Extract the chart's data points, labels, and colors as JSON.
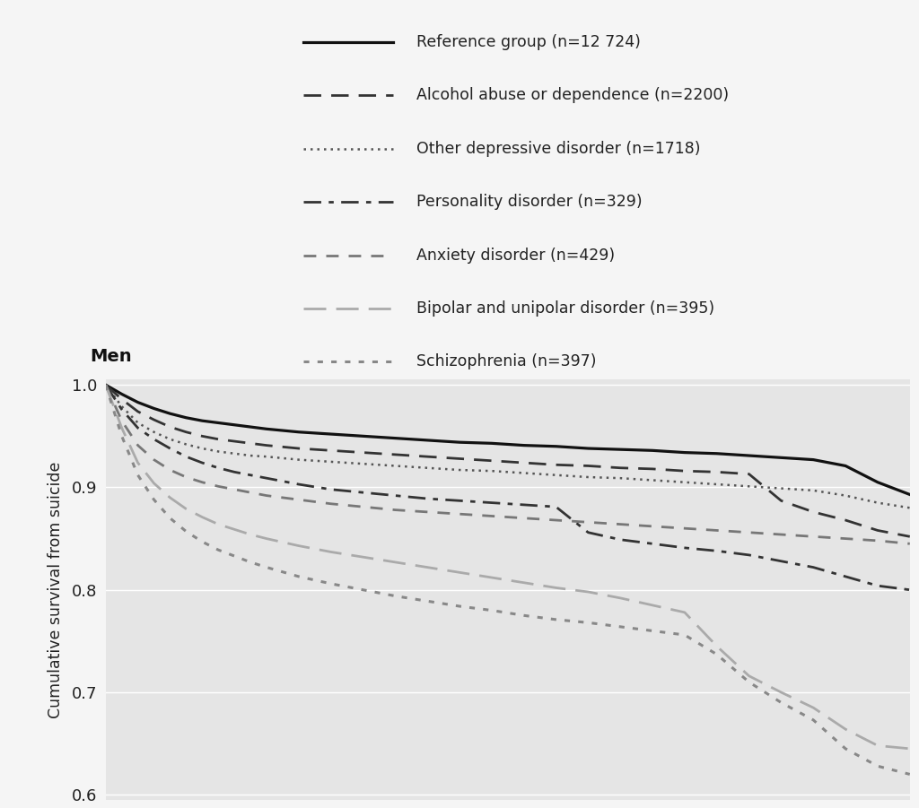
{
  "title": "Men",
  "ylabel": "Cumulative survival from suicide",
  "xlim": [
    0,
    25
  ],
  "ylim": [
    0.595,
    1.005
  ],
  "yticks": [
    0.6,
    0.7,
    0.8,
    0.9,
    1.0
  ],
  "bg_color": "#e5e5e5",
  "fig_bg_color": "#f5f5f5",
  "series": [
    {
      "label": "Reference group (n=12 724)",
      "color": "#111111",
      "linestyle": "solid",
      "linewidth": 2.3,
      "x": [
        0,
        0.5,
        1,
        1.5,
        2,
        2.5,
        3,
        3.5,
        4,
        4.5,
        5,
        6,
        7,
        8,
        9,
        10,
        11,
        12,
        13,
        14,
        15,
        16,
        17,
        18,
        19,
        20,
        21,
        22,
        23,
        24,
        25
      ],
      "y": [
        1.0,
        0.991,
        0.983,
        0.977,
        0.972,
        0.968,
        0.965,
        0.963,
        0.961,
        0.959,
        0.957,
        0.954,
        0.952,
        0.95,
        0.948,
        0.946,
        0.944,
        0.943,
        0.941,
        0.94,
        0.938,
        0.937,
        0.936,
        0.934,
        0.933,
        0.931,
        0.929,
        0.927,
        0.921,
        0.905,
        0.893
      ]
    },
    {
      "label": "Alcohol abuse or dependence (n=2200)",
      "color": "#333333",
      "linestyle": "dashed",
      "dash_pattern": [
        7,
        4
      ],
      "linewidth": 2.0,
      "x": [
        0,
        0.5,
        1,
        1.5,
        2,
        2.5,
        3,
        3.5,
        4,
        4.5,
        5,
        6,
        7,
        8,
        9,
        10,
        11,
        12,
        13,
        14,
        15,
        16,
        17,
        18,
        19,
        20,
        21,
        22,
        23,
        24,
        25
      ],
      "y": [
        1.0,
        0.986,
        0.974,
        0.966,
        0.959,
        0.954,
        0.95,
        0.947,
        0.945,
        0.943,
        0.941,
        0.938,
        0.936,
        0.934,
        0.932,
        0.93,
        0.928,
        0.926,
        0.924,
        0.922,
        0.921,
        0.919,
        0.918,
        0.916,
        0.915,
        0.913,
        0.887,
        0.876,
        0.868,
        0.858,
        0.852
      ]
    },
    {
      "label": "Other depressive disorder (n=1718)",
      "color": "#555555",
      "linestyle": "densely_dotted",
      "dash_pattern": [
        1,
        2
      ],
      "linewidth": 1.8,
      "x": [
        0,
        0.5,
        1,
        1.5,
        2,
        2.5,
        3,
        3.5,
        4,
        4.5,
        5,
        6,
        7,
        8,
        9,
        10,
        11,
        12,
        13,
        14,
        15,
        16,
        17,
        18,
        19,
        20,
        21,
        22,
        23,
        24,
        25
      ],
      "y": [
        1.0,
        0.979,
        0.963,
        0.954,
        0.947,
        0.942,
        0.938,
        0.935,
        0.933,
        0.931,
        0.93,
        0.927,
        0.925,
        0.923,
        0.921,
        0.919,
        0.917,
        0.916,
        0.914,
        0.912,
        0.91,
        0.909,
        0.907,
        0.905,
        0.903,
        0.901,
        0.899,
        0.897,
        0.892,
        0.885,
        0.88
      ]
    },
    {
      "label": "Personality disorder (n=329)",
      "color": "#333333",
      "linestyle": "dashdotted",
      "dash_pattern": [
        7,
        3,
        2,
        3
      ],
      "linewidth": 2.0,
      "x": [
        0,
        0.5,
        1,
        1.5,
        2,
        2.5,
        3,
        3.5,
        4,
        4.5,
        5,
        6,
        7,
        8,
        9,
        10,
        11,
        12,
        13,
        14,
        15,
        16,
        17,
        18,
        19,
        20,
        21,
        22,
        23,
        24,
        25
      ],
      "y": [
        1.0,
        0.976,
        0.958,
        0.947,
        0.938,
        0.93,
        0.924,
        0.919,
        0.915,
        0.912,
        0.909,
        0.903,
        0.898,
        0.895,
        0.892,
        0.889,
        0.887,
        0.885,
        0.883,
        0.881,
        0.856,
        0.849,
        0.845,
        0.841,
        0.838,
        0.834,
        0.828,
        0.822,
        0.813,
        0.804,
        0.8
      ]
    },
    {
      "label": "Anxiety disorder (n=429)",
      "color": "#777777",
      "linestyle": "dashed",
      "dash_pattern": [
        5,
        4
      ],
      "linewidth": 2.0,
      "x": [
        0,
        0.5,
        1,
        1.5,
        2,
        2.5,
        3,
        3.5,
        4,
        4.5,
        5,
        6,
        7,
        8,
        9,
        10,
        11,
        12,
        13,
        14,
        15,
        16,
        17,
        18,
        19,
        20,
        21,
        22,
        23,
        24,
        25
      ],
      "y": [
        1.0,
        0.965,
        0.941,
        0.927,
        0.917,
        0.91,
        0.905,
        0.901,
        0.898,
        0.895,
        0.892,
        0.888,
        0.884,
        0.881,
        0.878,
        0.876,
        0.874,
        0.872,
        0.87,
        0.868,
        0.866,
        0.864,
        0.862,
        0.86,
        0.858,
        0.856,
        0.854,
        0.852,
        0.85,
        0.848,
        0.845
      ]
    },
    {
      "label": "Bipolar and unipolar disorder (n=395)",
      "color": "#aaaaaa",
      "linestyle": "dashed",
      "dash_pattern": [
        9,
        4
      ],
      "linewidth": 2.0,
      "x": [
        0,
        0.5,
        1,
        1.5,
        2,
        2.5,
        3,
        3.5,
        4,
        4.5,
        5,
        6,
        7,
        8,
        9,
        10,
        11,
        12,
        13,
        14,
        15,
        16,
        17,
        18,
        19,
        20,
        21,
        22,
        23,
        24,
        25
      ],
      "y": [
        1.0,
        0.958,
        0.924,
        0.904,
        0.89,
        0.879,
        0.871,
        0.864,
        0.859,
        0.854,
        0.85,
        0.843,
        0.837,
        0.832,
        0.827,
        0.822,
        0.817,
        0.812,
        0.807,
        0.802,
        0.798,
        0.792,
        0.785,
        0.778,
        0.745,
        0.716,
        0.7,
        0.685,
        0.664,
        0.648,
        0.645
      ]
    },
    {
      "label": "Schizophrenia (n=397)",
      "color": "#888888",
      "linestyle": "dotted",
      "dash_pattern": [
        2,
        3
      ],
      "linewidth": 2.2,
      "x": [
        0,
        0.5,
        1,
        1.5,
        2,
        2.5,
        3,
        3.5,
        4,
        4.5,
        5,
        6,
        7,
        8,
        9,
        10,
        11,
        12,
        13,
        14,
        15,
        16,
        17,
        18,
        19,
        20,
        21,
        22,
        23,
        24,
        25
      ],
      "y": [
        1.0,
        0.95,
        0.912,
        0.888,
        0.87,
        0.857,
        0.847,
        0.839,
        0.833,
        0.827,
        0.822,
        0.813,
        0.806,
        0.8,
        0.794,
        0.789,
        0.784,
        0.78,
        0.775,
        0.771,
        0.768,
        0.764,
        0.76,
        0.756,
        0.737,
        0.71,
        0.69,
        0.673,
        0.645,
        0.628,
        0.62
      ]
    }
  ],
  "legend_entries": [
    {
      "label": "Reference group (n=12 724)",
      "color": "#111111",
      "linestyle": "solid",
      "linewidth": 2.3
    },
    {
      "label": "Alcohol abuse or dependence (n=2200)",
      "color": "#333333",
      "linestyle": "dashed",
      "dash_pattern": [
        7,
        4
      ],
      "linewidth": 2.0
    },
    {
      "label": "Other depressive disorder (n=1718)",
      "color": "#555555",
      "linestyle": "densely_dotted",
      "dash_pattern": [
        1,
        2
      ],
      "linewidth": 1.8
    },
    {
      "label": "Personality disorder (n=329)",
      "color": "#333333",
      "linestyle": "dashdotted",
      "dash_pattern": [
        7,
        3,
        2,
        3
      ],
      "linewidth": 2.0
    },
    {
      "label": "Anxiety disorder (n=429)",
      "color": "#777777",
      "linestyle": "dashed",
      "dash_pattern": [
        5,
        4
      ],
      "linewidth": 2.0
    },
    {
      "label": "Bipolar and unipolar disorder (n=395)",
      "color": "#aaaaaa",
      "linestyle": "dashed",
      "dash_pattern": [
        9,
        4
      ],
      "linewidth": 2.0
    },
    {
      "label": "Schizophrenia (n=397)",
      "color": "#888888",
      "linestyle": "dotted",
      "dash_pattern": [
        2,
        3
      ],
      "linewidth": 2.2
    }
  ]
}
